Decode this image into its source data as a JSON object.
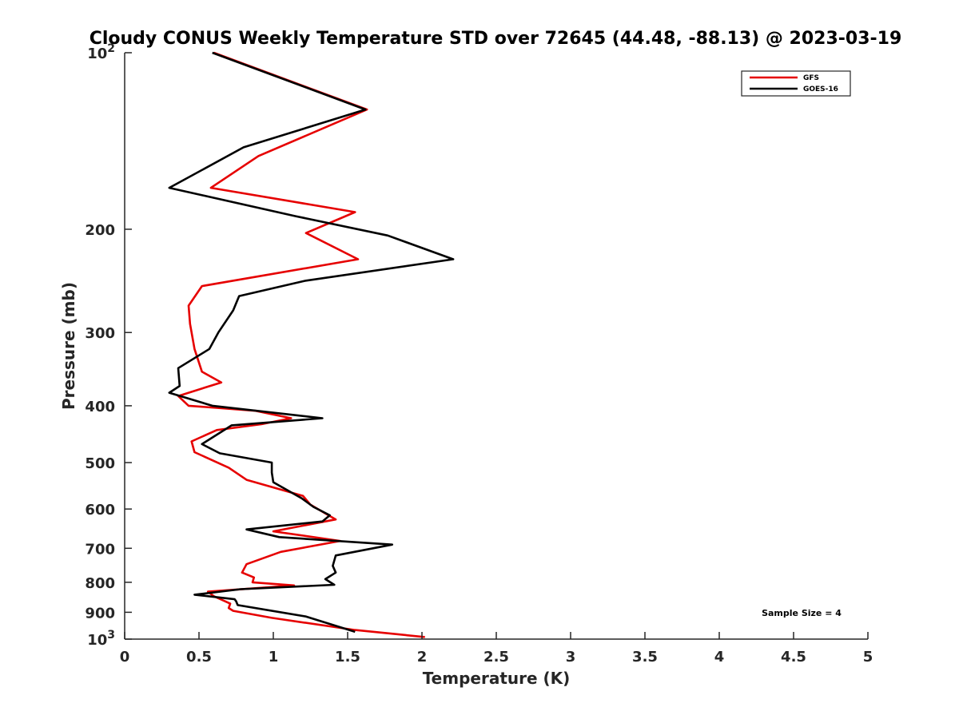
{
  "chart_data": {
    "type": "line",
    "title": "Cloudy CONUS Weekly Temperature STD over 72645 (44.48, -88.13) @ 2023-03-19",
    "xlabel": "Temperature (K)",
    "ylabel": "Pressure (mb)",
    "xlim": [
      0,
      5
    ],
    "ylim": [
      100,
      1000
    ],
    "y_scale": "log",
    "y_reversed": true,
    "x_ticks": [
      "0",
      "0.5",
      "1",
      "1.5",
      "2",
      "2.5",
      "3",
      "3.5",
      "4",
      "4.5",
      "5"
    ],
    "y_ticks": [
      {
        "value": 100,
        "label": "10",
        "exp": "2"
      },
      {
        "value": 200,
        "label": "200"
      },
      {
        "value": 300,
        "label": "300"
      },
      {
        "value": 400,
        "label": "400"
      },
      {
        "value": 500,
        "label": "500"
      },
      {
        "value": 600,
        "label": "600"
      },
      {
        "value": 700,
        "label": "700"
      },
      {
        "value": 800,
        "label": "800"
      },
      {
        "value": 900,
        "label": "900"
      },
      {
        "value": 1000,
        "label": "10",
        "exp": "3"
      }
    ],
    "grid": false,
    "legend_position": "top-right",
    "annotation": "Sample Size = 4",
    "series": [
      {
        "name": "GFS",
        "color": "#e60000",
        "points": [
          [
            0.6,
            100
          ],
          [
            1.63,
            125
          ],
          [
            0.9,
            150
          ],
          [
            0.58,
            170
          ],
          [
            1.55,
            187
          ],
          [
            1.22,
            203
          ],
          [
            1.57,
            225
          ],
          [
            0.52,
            250
          ],
          [
            0.43,
            270
          ],
          [
            0.44,
            290
          ],
          [
            0.47,
            320
          ],
          [
            0.52,
            350
          ],
          [
            0.65,
            365
          ],
          [
            0.36,
            385
          ],
          [
            0.43,
            400
          ],
          [
            0.88,
            408
          ],
          [
            1.12,
            420
          ],
          [
            0.92,
            430
          ],
          [
            0.62,
            440
          ],
          [
            0.45,
            460
          ],
          [
            0.47,
            480
          ],
          [
            0.7,
            510
          ],
          [
            0.82,
            535
          ],
          [
            1.2,
            570
          ],
          [
            1.25,
            590
          ],
          [
            1.42,
            625
          ],
          [
            1.0,
            655
          ],
          [
            1.45,
            680
          ],
          [
            1.05,
            710
          ],
          [
            0.82,
            745
          ],
          [
            0.79,
            770
          ],
          [
            0.87,
            785
          ],
          [
            0.86,
            800
          ],
          [
            1.14,
            810
          ],
          [
            0.56,
            830
          ],
          [
            0.6,
            845
          ],
          [
            0.71,
            870
          ],
          [
            0.7,
            885
          ],
          [
            0.73,
            895
          ],
          [
            0.99,
            920
          ],
          [
            1.55,
            965
          ],
          [
            2.02,
            992
          ]
        ]
      },
      {
        "name": "GOES-16",
        "color": "#000000",
        "points": [
          [
            0.59,
            100
          ],
          [
            1.62,
            125
          ],
          [
            0.8,
            145
          ],
          [
            0.3,
            170
          ],
          [
            1.15,
            190
          ],
          [
            1.77,
            205
          ],
          [
            2.21,
            225
          ],
          [
            1.21,
            245
          ],
          [
            0.77,
            260
          ],
          [
            0.73,
            275
          ],
          [
            0.63,
            300
          ],
          [
            0.57,
            320
          ],
          [
            0.36,
            345
          ],
          [
            0.37,
            370
          ],
          [
            0.3,
            380
          ],
          [
            0.59,
            400
          ],
          [
            1.33,
            420
          ],
          [
            0.72,
            432
          ],
          [
            0.52,
            465
          ],
          [
            0.64,
            482
          ],
          [
            0.99,
            500
          ],
          [
            0.99,
            520
          ],
          [
            1.0,
            540
          ],
          [
            1.19,
            575
          ],
          [
            1.27,
            595
          ],
          [
            1.38,
            615
          ],
          [
            1.33,
            630
          ],
          [
            0.82,
            650
          ],
          [
            1.04,
            670
          ],
          [
            1.8,
            690
          ],
          [
            1.42,
            720
          ],
          [
            1.4,
            750
          ],
          [
            1.42,
            770
          ],
          [
            1.35,
            790
          ],
          [
            1.41,
            808
          ],
          [
            0.78,
            822
          ],
          [
            0.47,
            840
          ],
          [
            0.74,
            855
          ],
          [
            0.75,
            862
          ],
          [
            0.76,
            875
          ],
          [
            1.22,
            915
          ],
          [
            1.55,
            972
          ]
        ]
      }
    ]
  }
}
